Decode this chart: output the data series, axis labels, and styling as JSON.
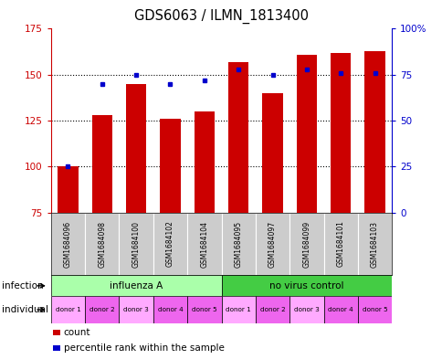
{
  "title": "GDS6063 / ILMN_1813400",
  "samples": [
    "GSM1684096",
    "GSM1684098",
    "GSM1684100",
    "GSM1684102",
    "GSM1684104",
    "GSM1684095",
    "GSM1684097",
    "GSM1684099",
    "GSM1684101",
    "GSM1684103"
  ],
  "counts": [
    100,
    128,
    145,
    126,
    130,
    157,
    140,
    161,
    162,
    163
  ],
  "percentiles": [
    25,
    70,
    75,
    70,
    72,
    78,
    75,
    78,
    76,
    76
  ],
  "ylim_left": [
    75,
    175
  ],
  "ylim_right": [
    0,
    100
  ],
  "yticks_left": [
    75,
    100,
    125,
    150,
    175
  ],
  "yticks_right": [
    0,
    25,
    50,
    75,
    100
  ],
  "ytick_labels_right": [
    "0",
    "25",
    "50",
    "75",
    "100%"
  ],
  "bar_color": "#cc0000",
  "dot_color": "#0000cc",
  "bar_bottom": 75,
  "infection_groups": [
    {
      "label": "influenza A",
      "start": 0,
      "end": 5,
      "color": "#aaffaa"
    },
    {
      "label": "no virus control",
      "start": 5,
      "end": 10,
      "color": "#44cc44"
    }
  ],
  "individual_labels": [
    "donor 1",
    "donor 2",
    "donor 3",
    "donor 4",
    "donor 5",
    "donor 1",
    "donor 2",
    "donor 3",
    "donor 4",
    "donor 5"
  ],
  "donor_colors": [
    "#ffaaff",
    "#ee66ee",
    "#ffaaff",
    "#ee66ee",
    "#ee66ee",
    "#ffaaff",
    "#ee66ee",
    "#ffaaff",
    "#ee66ee",
    "#ee66ee"
  ],
  "infection_label": "infection",
  "individual_label": "individual",
  "legend_count_label": "count",
  "legend_percentile_label": "percentile rank within the sample",
  "tick_color_left": "#cc0000",
  "tick_color_right": "#0000cc",
  "grid_yticks": [
    100,
    125,
    150
  ]
}
